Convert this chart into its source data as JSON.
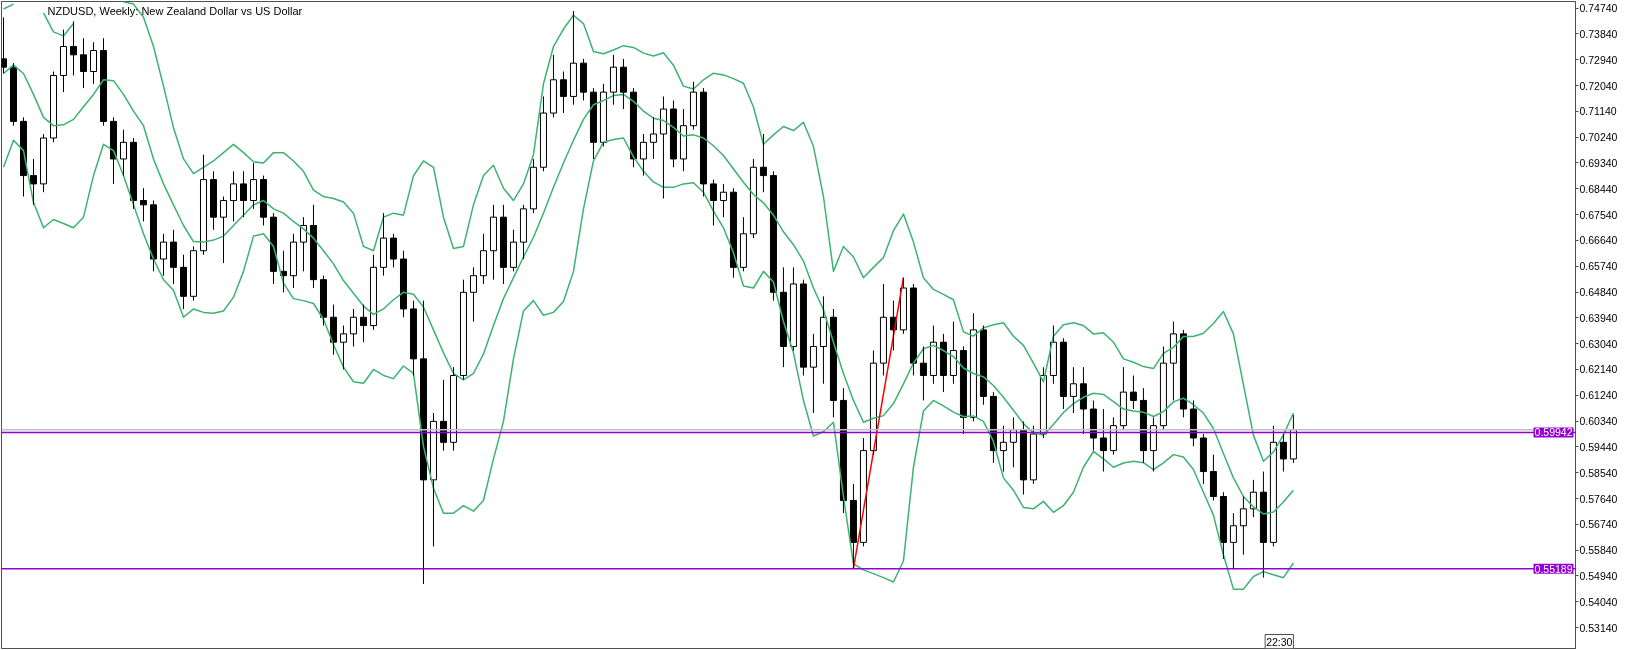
{
  "chart_data": {
    "type": "candlestick",
    "title": "NZDUSD, Weekly: New Zealand Dollar vs US Dollar",
    "color": "#000000",
    "categories": [
      null,
      null,
      null,
      null,
      null,
      null,
      null,
      null,
      null,
      null,
      null,
      null,
      null,
      null,
      null,
      null,
      null,
      null,
      null,
      null,
      null,
      null,
      null,
      null,
      null,
      null,
      null,
      null,
      null,
      null,
      null,
      null,
      null,
      null,
      null,
      null,
      null,
      null,
      null,
      null,
      null,
      null,
      null,
      null,
      null,
      null,
      null,
      null,
      null,
      null,
      null,
      null,
      null,
      null,
      null,
      null,
      null,
      null,
      null,
      null,
      null,
      null,
      null,
      null,
      null,
      null,
      null,
      null,
      null,
      null,
      null,
      null,
      null,
      null,
      null,
      null,
      null,
      null,
      null,
      null,
      null,
      null,
      null,
      null,
      null,
      null,
      null,
      null,
      null,
      null,
      null,
      null,
      null,
      null,
      null,
      null,
      null,
      null,
      null,
      null,
      null,
      null,
      null,
      null,
      null,
      null,
      null,
      null,
      null,
      null,
      null,
      null,
      null,
      null,
      null,
      null,
      null,
      null,
      null,
      null,
      null,
      null,
      null,
      null,
      null,
      null,
      null,
      null,
      null,
      null
    ],
    "ohlc": [
      [
        0.7297,
        0.7442,
        0.7246,
        0.7268
      ],
      [
        0.7268,
        0.7282,
        0.7064,
        0.7079
      ],
      [
        0.7079,
        0.7093,
        0.6817,
        0.689
      ],
      [
        0.689,
        0.6948,
        0.6788,
        0.6861
      ],
      [
        0.6861,
        0.7035,
        0.6832,
        0.7021
      ],
      [
        0.7021,
        0.7253,
        0.7006,
        0.7239
      ],
      [
        0.7239,
        0.7399,
        0.7181,
        0.734
      ],
      [
        0.734,
        0.7428,
        0.7239,
        0.7311
      ],
      [
        0.7311,
        0.7369,
        0.7195,
        0.7253
      ],
      [
        0.7253,
        0.7355,
        0.721,
        0.7326
      ],
      [
        0.7326,
        0.7369,
        0.7064,
        0.7079
      ],
      [
        0.7079,
        0.7093,
        0.6861,
        0.6948
      ],
      [
        0.6948,
        0.705,
        0.689,
        0.7006
      ],
      [
        0.7006,
        0.7021,
        0.6774,
        0.6803
      ],
      [
        0.6803,
        0.6846,
        0.673,
        0.6788
      ],
      [
        0.6788,
        0.6803,
        0.6556,
        0.6599
      ],
      [
        0.6599,
        0.6687,
        0.6541,
        0.6658
      ],
      [
        0.6658,
        0.6701,
        0.6512,
        0.657
      ],
      [
        0.657,
        0.6614,
        0.6425,
        0.6469
      ],
      [
        0.6469,
        0.6643,
        0.6454,
        0.6628
      ],
      [
        0.6628,
        0.6963,
        0.6614,
        0.6876
      ],
      [
        0.6876,
        0.6905,
        0.6701,
        0.6745
      ],
      [
        0.6745,
        0.6817,
        0.6585,
        0.6803
      ],
      [
        0.6803,
        0.6905,
        0.673,
        0.6861
      ],
      [
        0.6861,
        0.6905,
        0.6745,
        0.6803
      ],
      [
        0.6803,
        0.6934,
        0.6774,
        0.6876
      ],
      [
        0.6876,
        0.689,
        0.6716,
        0.6745
      ],
      [
        0.6745,
        0.6759,
        0.6512,
        0.6556
      ],
      [
        0.6556,
        0.6628,
        0.6483,
        0.6541
      ],
      [
        0.6541,
        0.6687,
        0.6498,
        0.6658
      ],
      [
        0.6658,
        0.6745,
        0.6556,
        0.6716
      ],
      [
        0.6716,
        0.6788,
        0.6498,
        0.6527
      ],
      [
        0.6527,
        0.6541,
        0.6367,
        0.6396
      ],
      [
        0.6396,
        0.644,
        0.6265,
        0.6309
      ],
      [
        0.6309,
        0.6367,
        0.6214,
        0.6338
      ],
      [
        0.6338,
        0.6425,
        0.6294,
        0.6396
      ],
      [
        0.6396,
        0.644,
        0.6309,
        0.6367
      ],
      [
        0.6367,
        0.6614,
        0.6352,
        0.657
      ],
      [
        0.657,
        0.6759,
        0.6541,
        0.6672
      ],
      [
        0.6672,
        0.6687,
        0.657,
        0.6599
      ],
      [
        0.6599,
        0.6628,
        0.6396,
        0.6425
      ],
      [
        0.6425,
        0.6454,
        0.6193,
        0.6251
      ],
      [
        0.6251,
        0.6454,
        0.5466,
        0.5829
      ],
      [
        0.5829,
        0.6062,
        0.5597,
        0.6033
      ],
      [
        0.6033,
        0.6178,
        0.5931,
        0.596
      ],
      [
        0.596,
        0.6222,
        0.5931,
        0.6193
      ],
      [
        0.6193,
        0.6527,
        0.6178,
        0.6483
      ],
      [
        0.6483,
        0.657,
        0.6381,
        0.6541
      ],
      [
        0.6541,
        0.6687,
        0.6512,
        0.6628
      ],
      [
        0.6628,
        0.6788,
        0.6527,
        0.6745
      ],
      [
        0.6745,
        0.6788,
        0.6512,
        0.657
      ],
      [
        0.657,
        0.6701,
        0.6556,
        0.6658
      ],
      [
        0.6658,
        0.6788,
        0.6599,
        0.6774
      ],
      [
        0.6774,
        0.6948,
        0.6759,
        0.6919
      ],
      [
        0.6919,
        0.7166,
        0.6905,
        0.7108
      ],
      [
        0.7108,
        0.7311,
        0.7093,
        0.7224
      ],
      [
        0.7224,
        0.7253,
        0.7108,
        0.7166
      ],
      [
        0.7166,
        0.7464,
        0.7137,
        0.7282
      ],
      [
        0.7282,
        0.7297,
        0.7152,
        0.7181
      ],
      [
        0.7181,
        0.7195,
        0.6948,
        0.7006
      ],
      [
        0.7006,
        0.721,
        0.6992,
        0.7181
      ],
      [
        0.7181,
        0.7311,
        0.7137,
        0.7268
      ],
      [
        0.7268,
        0.7297,
        0.7122,
        0.7181
      ],
      [
        0.7181,
        0.7195,
        0.6919,
        0.6948
      ],
      [
        0.6948,
        0.7035,
        0.689,
        0.7006
      ],
      [
        0.7006,
        0.7093,
        0.6948,
        0.7035
      ],
      [
        0.7035,
        0.7166,
        0.681,
        0.7122
      ],
      [
        0.7122,
        0.7152,
        0.6919,
        0.6948
      ],
      [
        0.6948,
        0.7122,
        0.6905,
        0.7064
      ],
      [
        0.7064,
        0.7217,
        0.705,
        0.7181
      ],
      [
        0.7181,
        0.7195,
        0.6817,
        0.6861
      ],
      [
        0.6861,
        0.6876,
        0.6716,
        0.6803
      ],
      [
        0.6803,
        0.6861,
        0.6745,
        0.6832
      ],
      [
        0.6832,
        0.6846,
        0.6534,
        0.657
      ],
      [
        0.657,
        0.6745,
        0.6556,
        0.6687
      ],
      [
        0.6687,
        0.6948,
        0.6672,
        0.6919
      ],
      [
        0.6919,
        0.7035,
        0.6832,
        0.689
      ],
      [
        0.689,
        0.6905,
        0.6454,
        0.6483
      ],
      [
        0.6483,
        0.657,
        0.6222,
        0.6294
      ],
      [
        0.6294,
        0.657,
        0.628,
        0.6512
      ],
      [
        0.6512,
        0.6527,
        0.6193,
        0.6222
      ],
      [
        0.6222,
        0.6338,
        0.6062,
        0.6294
      ],
      [
        0.6294,
        0.6469,
        0.6164,
        0.6396
      ],
      [
        0.6396,
        0.6425,
        0.6047,
        0.6106
      ],
      [
        0.6106,
        0.6149,
        0.5713,
        0.5757
      ],
      [
        0.5757,
        0.5815,
        0.552,
        0.5611
      ],
      [
        0.5611,
        0.5975,
        0.5597,
        0.5931
      ],
      [
        0.5931,
        0.628,
        0.5917,
        0.6236
      ],
      [
        0.6236,
        0.6512,
        0.6193,
        0.6396
      ],
      [
        0.6396,
        0.6454,
        0.628,
        0.6352
      ],
      [
        0.6352,
        0.6534,
        0.6338,
        0.6498
      ],
      [
        0.6498,
        0.6512,
        0.6193,
        0.6236
      ],
      [
        0.6236,
        0.6294,
        0.6106,
        0.6193
      ],
      [
        0.6193,
        0.6367,
        0.6164,
        0.6309
      ],
      [
        0.6309,
        0.6338,
        0.6135,
        0.6193
      ],
      [
        0.6193,
        0.6381,
        0.6164,
        0.628
      ],
      [
        0.628,
        0.6294,
        0.5989,
        0.6047
      ],
      [
        0.6047,
        0.641,
        0.6033,
        0.6352
      ],
      [
        0.6352,
        0.6367,
        0.6091,
        0.612
      ],
      [
        0.612,
        0.6135,
        0.5888,
        0.5931
      ],
      [
        0.5931,
        0.6018,
        0.5858,
        0.596
      ],
      [
        0.596,
        0.6047,
        0.5873,
        0.6004
      ],
      [
        0.6004,
        0.6033,
        0.5778,
        0.5829
      ],
      [
        0.5829,
        0.6018,
        0.5815,
        0.5989
      ],
      [
        0.5989,
        0.6222,
        0.5975,
        0.6193
      ],
      [
        0.6193,
        0.6367,
        0.6164,
        0.6309
      ],
      [
        0.6309,
        0.6323,
        0.6076,
        0.612
      ],
      [
        0.612,
        0.6222,
        0.6062,
        0.6164
      ],
      [
        0.6164,
        0.6222,
        0.5989,
        0.6076
      ],
      [
        0.6076,
        0.6106,
        0.5931,
        0.5975
      ],
      [
        0.5975,
        0.6076,
        0.5858,
        0.5931
      ],
      [
        0.5931,
        0.6047,
        0.5917,
        0.6018
      ],
      [
        0.6018,
        0.6222,
        0.6004,
        0.6135
      ],
      [
        0.6135,
        0.6193,
        0.6076,
        0.6106
      ],
      [
        0.6106,
        0.6149,
        0.5888,
        0.5931
      ],
      [
        0.5931,
        0.6047,
        0.5858,
        0.6018
      ],
      [
        0.6018,
        0.6294,
        0.6004,
        0.6236
      ],
      [
        0.6236,
        0.6381,
        0.6106,
        0.6338
      ],
      [
        0.6338,
        0.6352,
        0.6047,
        0.6076
      ],
      [
        0.6076,
        0.6106,
        0.5946,
        0.5975
      ],
      [
        0.5975,
        0.5989,
        0.5815,
        0.5858
      ],
      [
        0.5858,
        0.5917,
        0.5757,
        0.5771
      ],
      [
        0.5771,
        0.5786,
        0.5553,
        0.5611
      ],
      [
        0.5611,
        0.5713,
        0.5517,
        0.5669
      ],
      [
        0.5669,
        0.5771,
        0.5568,
        0.5728
      ],
      [
        0.5728,
        0.5829,
        0.5699,
        0.5786
      ],
      [
        0.5786,
        0.5858,
        0.5488,
        0.5611
      ],
      [
        0.5611,
        0.6018,
        0.5597,
        0.596
      ],
      [
        0.596,
        0.5989,
        0.5858,
        0.5902
      ],
      [
        0.5902,
        0.6055,
        0.5888,
        0.6004
      ]
    ],
    "series": [
      {
        "type": "line",
        "color": "#3cb371",
        "values": [
          0.7471,
          0.7488,
          null,
          null,
          0.7457,
          0.7391,
          0.7377,
          0.742,
          null,
          null,
          null,
          null,
          0.7496,
          0.7488,
          0.7442,
          0.734,
          0.7202,
          0.7057,
          0.6948,
          0.6897,
          0.6919,
          0.6941,
          0.697,
          0.6999,
          0.697,
          0.6938,
          0.6934,
          0.697,
          0.697,
          0.6941,
          0.6905,
          0.6839,
          0.6817,
          0.681,
          0.6798,
          0.6759,
          0.6643,
          0.6628,
          0.6745,
          0.6759,
          0.6752,
          0.689,
          0.6941,
          0.6919,
          0.6745,
          0.6636,
          0.6643,
          0.6788,
          0.689,
          0.6926,
          0.6846,
          0.6803,
          0.6861,
          0.6963,
          0.721,
          0.734,
          0.7401,
          0.7449,
          0.742,
          0.7323,
          0.7315,
          0.7328,
          0.7343,
          0.7337,
          0.7317,
          0.7307,
          0.7318,
          0.7275,
          0.7202,
          0.7192,
          0.7224,
          0.7247,
          0.7241,
          0.7228,
          0.7212,
          0.7129,
          0.6999,
          0.7032,
          0.7061,
          0.7047,
          0.7076,
          0.6992,
          0.6817,
          0.6556,
          0.6643,
          0.6606,
          0.6534,
          0.657,
          0.6604,
          0.6698,
          0.6756,
          0.6658,
          0.6534,
          0.6493,
          0.6476,
          0.6457,
          0.6345,
          0.633,
          0.6359,
          0.637,
          0.6377,
          0.633,
          0.6298,
          0.6236,
          0.6171,
          0.633,
          0.637,
          0.6377,
          0.6367,
          0.6338,
          0.6342,
          0.6309,
          0.6251,
          0.6239,
          0.6224,
          0.6217,
          0.627,
          0.6291,
          0.6329,
          0.6329,
          0.634,
          0.6374,
          0.6416,
          0.6338,
          0.6161,
          0.5985,
          0.5894,
          0.5926,
          0.5986,
          0.6062
        ]
      },
      {
        "type": "line",
        "color": "#3cb371",
        "values": [
          0.7246,
          0.7275,
          0.7246,
          0.7173,
          0.7093,
          0.7064,
          0.7067,
          0.7086,
          0.713,
          0.7173,
          0.7224,
          0.7221,
          0.7173,
          0.7115,
          0.7064,
          0.6948,
          0.6861,
          0.6788,
          0.6716,
          0.666,
          0.6658,
          0.6665,
          0.6679,
          0.6716,
          0.6752,
          0.6788,
          0.6803,
          0.6774,
          0.6759,
          0.673,
          0.6704,
          0.6672,
          0.6628,
          0.6582,
          0.6524,
          0.648,
          0.6435,
          0.6406,
          0.6425,
          0.6457,
          0.6483,
          0.6476,
          0.6432,
          0.6352,
          0.6272,
          0.62,
          0.6178,
          0.62,
          0.6268,
          0.6367,
          0.6461,
          0.6534,
          0.6606,
          0.6675,
          0.6759,
          0.6849,
          0.6934,
          0.7013,
          0.7086,
          0.7137,
          0.7152,
          0.7169,
          0.7173,
          0.7149,
          0.7115,
          0.709,
          0.7082,
          0.7058,
          0.7028,
          0.7032,
          0.7021,
          0.6994,
          0.696,
          0.6913,
          0.6867,
          0.6824,
          0.6795,
          0.6752,
          0.6694,
          0.6649,
          0.6592,
          0.6498,
          0.6422,
          0.6309,
          0.62,
          0.6106,
          0.603,
          0.6044,
          0.6053,
          0.6095,
          0.6164,
          0.6236,
          0.6286,
          0.6298,
          0.628,
          0.6259,
          0.6219,
          0.62,
          0.6188,
          0.6158,
          0.6117,
          0.6072,
          0.6025,
          0.5993,
          0.5985,
          0.6022,
          0.6064,
          0.6095,
          0.6117,
          0.6131,
          0.6127,
          0.6102,
          0.6076,
          0.6069,
          0.6065,
          0.605,
          0.6067,
          0.6101,
          0.6114,
          0.6091,
          0.6062,
          0.6008,
          0.5921,
          0.5836,
          0.5771,
          0.5735,
          0.571,
          0.5717,
          0.5752,
          0.5793
        ]
      },
      {
        "type": "line",
        "color": "#3cb371",
        "values": [
          0.6919,
          0.7013,
          0.6977,
          0.6796,
          0.6708,
          0.6737,
          0.6723,
          0.6708,
          0.6745,
          0.689,
          0.6999,
          0.6977,
          0.689,
          0.6788,
          0.6687,
          0.6599,
          0.6527,
          0.649,
          0.6396,
          0.6425,
          0.6413,
          0.641,
          0.6418,
          0.6466,
          0.6556,
          0.6679,
          0.6687,
          0.6643,
          0.6515,
          0.6461,
          0.6454,
          0.6444,
          0.6389,
          0.6301,
          0.6222,
          0.6171,
          0.6166,
          0.6214,
          0.6193,
          0.6182,
          0.6226,
          0.62,
          0.5946,
          0.58,
          0.5713,
          0.5713,
          0.5739,
          0.572,
          0.5757,
          0.5902,
          0.6033,
          0.6251,
          0.6418,
          0.6454,
          0.6403,
          0.6413,
          0.6451,
          0.6556,
          0.6774,
          0.6941,
          0.7006,
          0.7016,
          0.7021,
          0.6955,
          0.6905,
          0.6868,
          0.6849,
          0.6849,
          0.6861,
          0.6865,
          0.6832,
          0.6766,
          0.6708,
          0.6621,
          0.6505,
          0.6498,
          0.6556,
          0.6519,
          0.6381,
          0.6272,
          0.6106,
          0.5982,
          0.5997,
          0.603,
          0.5771,
          0.5536,
          0.5515,
          0.5502,
          0.5488,
          0.5473,
          0.5546,
          0.5873,
          0.6069,
          0.6106,
          0.6087,
          0.6065,
          0.605,
          0.6052,
          0.6033,
          0.5963,
          0.5836,
          0.5793,
          0.5733,
          0.5728,
          0.5754,
          0.5716,
          0.5739,
          0.5786,
          0.5873,
          0.5928,
          0.5902,
          0.5873,
          0.5888,
          0.5894,
          0.5889,
          0.5865,
          0.5888,
          0.5917,
          0.5909,
          0.5865,
          0.5786,
          0.5706,
          0.5568,
          0.5448,
          0.5448,
          0.5492,
          0.5509,
          0.5498,
          0.5488,
          0.5539
        ]
      },
      {
        "type": "line",
        "color": "#ff0000",
        "values": [
          null,
          null,
          null,
          null,
          null,
          null,
          null,
          null,
          null,
          null,
          null,
          null,
          null,
          null,
          null,
          null,
          null,
          null,
          null,
          null,
          null,
          null,
          null,
          null,
          null,
          null,
          null,
          null,
          null,
          null,
          null,
          null,
          null,
          null,
          null,
          null,
          null,
          null,
          null,
          null,
          null,
          null,
          null,
          null,
          null,
          null,
          null,
          null,
          null,
          null,
          null,
          null,
          null,
          null,
          null,
          null,
          null,
          null,
          null,
          null,
          null,
          null,
          null,
          null,
          null,
          null,
          null,
          null,
          null,
          null,
          null,
          null,
          null,
          null,
          null,
          null,
          null,
          null,
          null,
          null,
          null,
          null,
          null,
          null,
          null,
          0.552,
          0.5723,
          0.5926,
          0.6128,
          0.6331,
          0.6534,
          null,
          null,
          null,
          null,
          null,
          null,
          null,
          null,
          null,
          null,
          null,
          null,
          null,
          null,
          null,
          null,
          null,
          null,
          null,
          null,
          null,
          null,
          null,
          null,
          null,
          null,
          null,
          null,
          null,
          null,
          null,
          null,
          null,
          null,
          null,
          null,
          null,
          null,
          null
        ]
      }
    ],
    "ylim": [
      0.5241,
      0.7497
    ],
    "yticks": [
      {
        "value": 0.7474,
        "label": "0.74740"
      },
      {
        "value": 0.7384,
        "label": "0.73840"
      },
      {
        "value": 0.7294,
        "label": "0.72940"
      },
      {
        "value": 0.7204,
        "label": "0.72040"
      },
      {
        "value": 0.7114,
        "label": "0.71140"
      },
      {
        "value": 0.7024,
        "label": "0.70240"
      },
      {
        "value": 0.6934,
        "label": "0.69340"
      },
      {
        "value": 0.6844,
        "label": "0.68440"
      },
      {
        "value": 0.6754,
        "label": "0.67540"
      },
      {
        "value": 0.6664,
        "label": "0.66640"
      },
      {
        "value": 0.6574,
        "label": "0.65740"
      },
      {
        "value": 0.6484,
        "label": "0.64840"
      },
      {
        "value": 0.6394,
        "label": "0.63940"
      },
      {
        "value": 0.6304,
        "label": "0.63040"
      },
      {
        "value": 0.6214,
        "label": "0.62140"
      },
      {
        "value": 0.6124,
        "label": "0.61240"
      },
      {
        "value": 0.6034,
        "label": "0.60340"
      },
      {
        "value": 0.5944,
        "label": "0.59440"
      },
      {
        "value": 0.5854,
        "label": "0.58540"
      },
      {
        "value": 0.5764,
        "label": "0.57640"
      },
      {
        "value": 0.5674,
        "label": "0.56740"
      },
      {
        "value": 0.5584,
        "label": "0.55840"
      },
      {
        "value": 0.5494,
        "label": "0.54940"
      },
      {
        "value": 0.5404,
        "label": "0.54040"
      },
      {
        "value": 0.5314,
        "label": "0.53140"
      }
    ],
    "tick_labels": "y",
    "grid": false,
    "ref_lines": [
      {
        "axis": "y",
        "value": 0.6004,
        "color": "#c0c0c0"
      },
      {
        "axis": "y",
        "value": 0.59942,
        "label": "0.59942",
        "color": "#9400d3"
      },
      {
        "axis": "y",
        "value": 0.55189,
        "label": "0.55189",
        "color": "#9400d3"
      }
    ],
    "annotations": [
      "22:30"
    ]
  }
}
